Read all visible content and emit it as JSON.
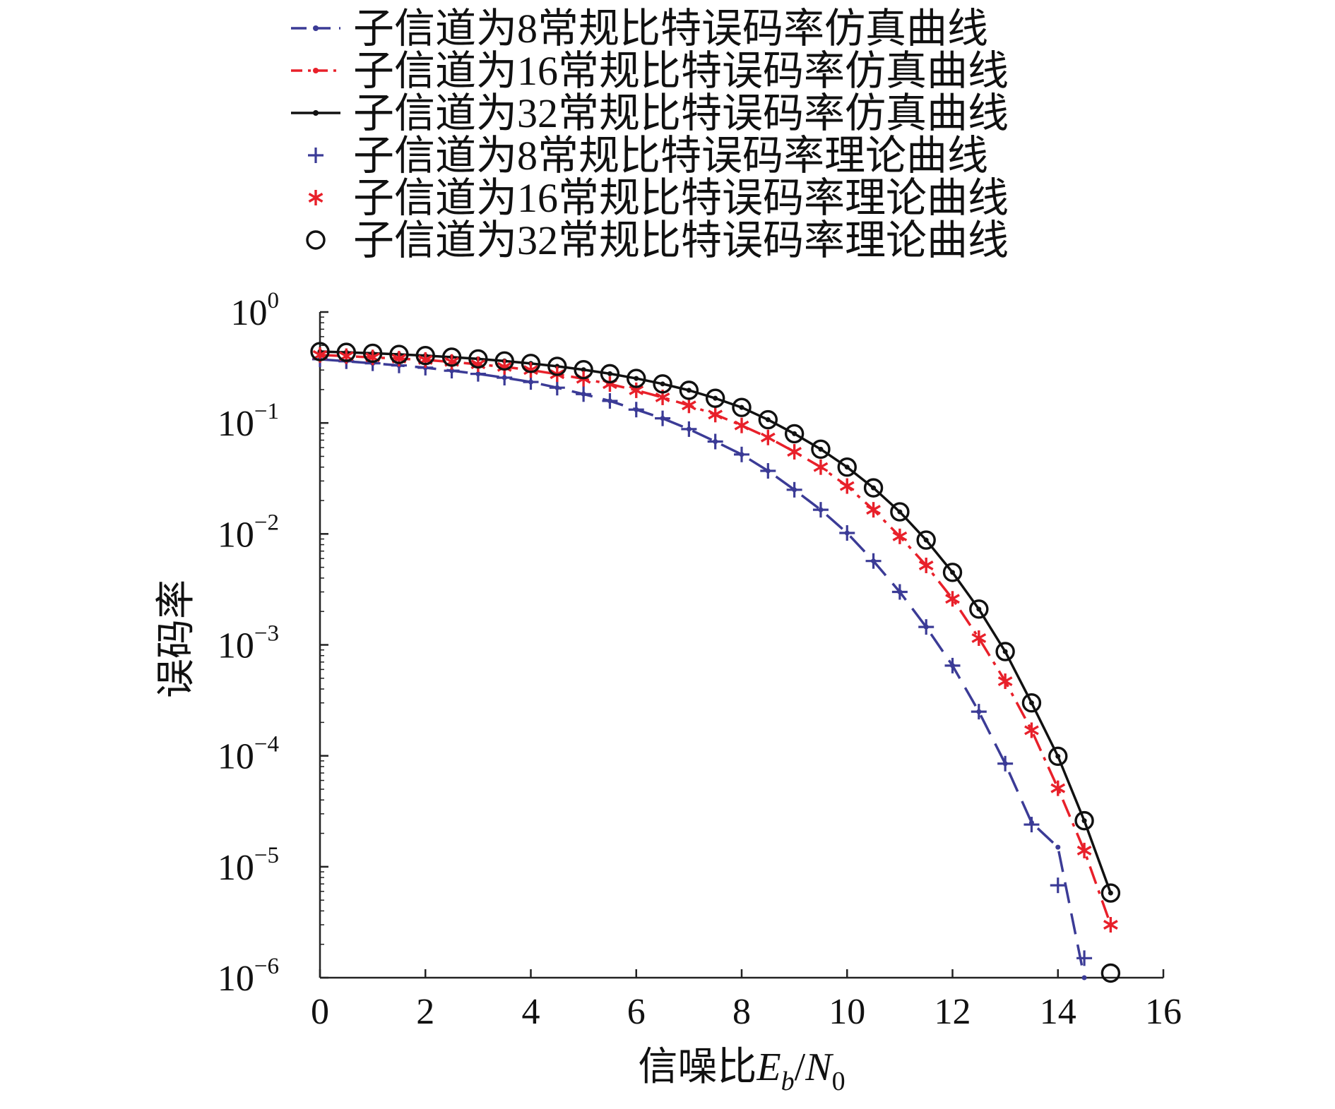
{
  "chart_data": {
    "type": "line",
    "title": "",
    "xlabel": "信噪比E_b/N_0",
    "xlabel_parts": {
      "prefix": "信噪比",
      "e": "E",
      "e_sub": "b",
      "slash": "/",
      "n": "N",
      "n_sub": "0"
    },
    "ylabel": "误码率",
    "xlim": [
      0,
      16
    ],
    "ylim": [
      1e-06,
      1
    ],
    "yscale": "log",
    "grid": false,
    "legend_position": "top",
    "x_ticks": [
      "0",
      "2",
      "4",
      "6",
      "8",
      "10",
      "12",
      "14",
      "16"
    ],
    "y_ticks": [
      {
        "base": "10",
        "exp": "0",
        "value": 1
      },
      {
        "base": "10",
        "exp": "−1",
        "value": 0.1
      },
      {
        "base": "10",
        "exp": "−2",
        "value": 0.01
      },
      {
        "base": "10",
        "exp": "−3",
        "value": 0.001
      },
      {
        "base": "10",
        "exp": "−4",
        "value": 0.0001
      },
      {
        "base": "10",
        "exp": "−5",
        "value": 1e-05
      },
      {
        "base": "10",
        "exp": "−6",
        "value": 1e-06
      }
    ],
    "x": [
      0,
      0.5,
      1,
      1.5,
      2,
      2.5,
      3,
      3.5,
      4,
      4.5,
      5,
      5.5,
      6,
      6.5,
      7,
      7.5,
      8,
      8.5,
      9,
      9.5,
      10,
      10.5,
      11,
      11.5,
      12,
      12.5,
      13,
      13.5,
      14,
      14.5,
      15
    ],
    "series": [
      {
        "name": "子信道为8常规比特误码率仿真曲线",
        "kind": "simulation",
        "color": "#3b3b96",
        "dash": "dashed",
        "values": [
          0.375,
          0.36,
          0.345,
          0.33,
          0.315,
          0.296,
          0.277,
          0.256,
          0.234,
          0.208,
          0.182,
          0.158,
          0.132,
          0.11,
          0.088,
          0.068,
          0.052,
          0.037,
          0.025,
          0.0165,
          0.0102,
          0.0057,
          0.003,
          0.00145,
          0.00065,
          0.00025,
          8.5e-05,
          2.5e-05,
          1.5e-05,
          1e-06,
          null
        ]
      },
      {
        "name": "子信道为16常规比特误码率仿真曲线",
        "kind": "simulation",
        "color": "#e8202a",
        "dash": "dashdot",
        "values": [
          0.41,
          0.4,
          0.39,
          0.38,
          0.37,
          0.355,
          0.338,
          0.32,
          0.3,
          0.275,
          0.25,
          0.224,
          0.197,
          0.17,
          0.144,
          0.119,
          0.095,
          0.074,
          0.055,
          0.04,
          0.027,
          0.0165,
          0.0095,
          0.0052,
          0.0026,
          0.00115,
          0.00047,
          0.00017,
          5.1e-05,
          1.4e-05,
          3e-06
        ]
      },
      {
        "name": "子信道为32常规比特误码率仿真曲线",
        "kind": "simulation",
        "color": "#111111",
        "dash": "solid",
        "values": [
          0.44,
          0.433,
          0.425,
          0.415,
          0.405,
          0.392,
          0.378,
          0.362,
          0.344,
          0.324,
          0.302,
          0.278,
          0.252,
          0.225,
          0.197,
          0.167,
          0.138,
          0.107,
          0.08,
          0.058,
          0.04,
          0.026,
          0.0158,
          0.0088,
          0.0045,
          0.0021,
          0.00087,
          0.0003,
          9.9e-05,
          2.6e-05,
          5.8e-06
        ]
      },
      {
        "name": "子信道为8常规比特误码率理论曲线",
        "kind": "theory",
        "color": "#3b3b96",
        "marker": "plus",
        "values": [
          0.375,
          0.36,
          0.345,
          0.33,
          0.315,
          0.296,
          0.277,
          0.256,
          0.234,
          0.208,
          0.182,
          0.158,
          0.132,
          0.11,
          0.088,
          0.068,
          0.052,
          0.037,
          0.025,
          0.0165,
          0.0102,
          0.0057,
          0.003,
          0.00145,
          0.00065,
          0.00025,
          8.5e-05,
          2.4e-05,
          6.8e-06,
          1.5e-06,
          null
        ]
      },
      {
        "name": "子信道为16常规比特误码率理论曲线",
        "kind": "theory",
        "color": "#e8202a",
        "marker": "asterisk",
        "values": [
          0.41,
          0.4,
          0.39,
          0.38,
          0.37,
          0.355,
          0.338,
          0.32,
          0.3,
          0.275,
          0.25,
          0.224,
          0.197,
          0.17,
          0.144,
          0.119,
          0.095,
          0.074,
          0.055,
          0.04,
          0.027,
          0.0165,
          0.0095,
          0.0052,
          0.0026,
          0.00115,
          0.00047,
          0.00017,
          5.1e-05,
          1.4e-05,
          3e-06
        ]
      },
      {
        "name": "子信道为32常规比特误码率理论曲线",
        "kind": "theory",
        "color": "#111111",
        "marker": "circle",
        "values": [
          0.44,
          0.433,
          0.425,
          0.415,
          0.405,
          0.392,
          0.378,
          0.362,
          0.344,
          0.324,
          0.302,
          0.278,
          0.252,
          0.225,
          0.197,
          0.167,
          0.138,
          0.107,
          0.08,
          0.058,
          0.04,
          0.026,
          0.0158,
          0.0088,
          0.0045,
          0.0021,
          0.00087,
          0.0003,
          9.9e-05,
          2.6e-05,
          5.8e-06
        ]
      }
    ],
    "extra_points": [
      {
        "series": "子信道为32常规比特误码率理论曲线",
        "x": 15,
        "y": 1.1e-06
      }
    ]
  }
}
